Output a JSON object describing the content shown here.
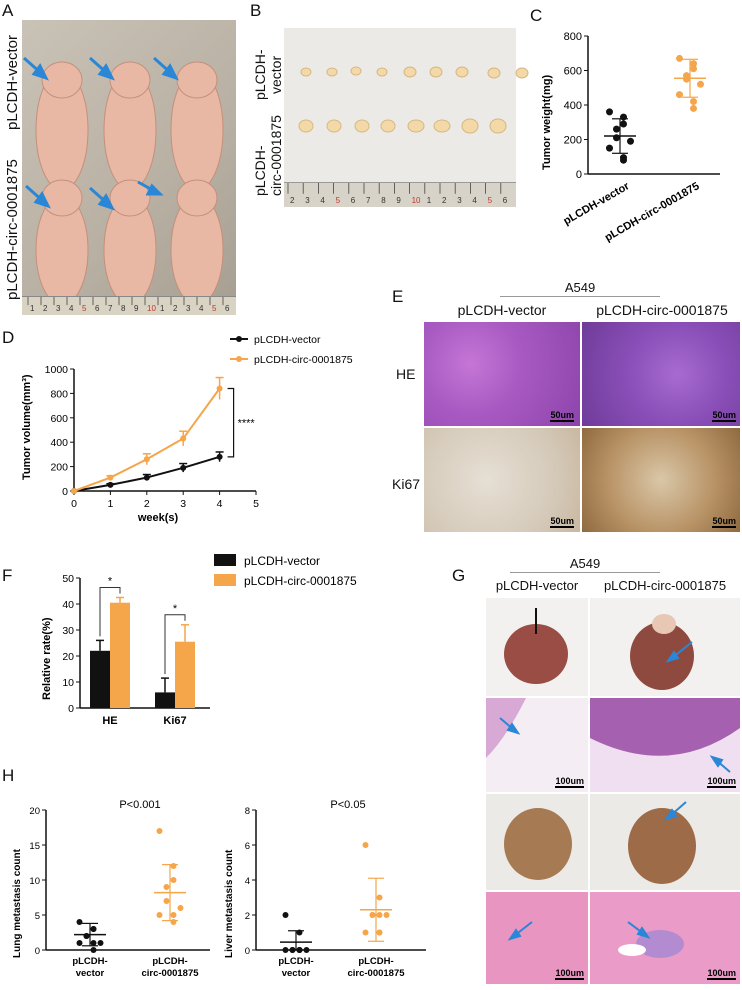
{
  "panels": {
    "A": {
      "letter": "A",
      "group1": "pLCDH-vector",
      "group2": "pLCDH-circ-0001875",
      "ruler": [
        "1",
        "2",
        "3",
        "4",
        "5",
        "6",
        "7",
        "8",
        "9",
        "10",
        "1",
        "2",
        "3",
        "4",
        "5",
        "6"
      ]
    },
    "B": {
      "letter": "B",
      "group1_l1": "pLCDH-",
      "group1_l2": "vector",
      "group2_l1": "pLCDH-",
      "group2_l2": "circ-0001875",
      "ruler": [
        "2",
        "3",
        "4",
        "5",
        "6",
        "7",
        "8",
        "9",
        "10",
        "1",
        "2",
        "3",
        "4",
        "5",
        "6"
      ]
    },
    "C": {
      "letter": "C"
    },
    "D": {
      "letter": "D"
    },
    "E": {
      "letter": "E",
      "cell_line": "A549",
      "col1": "pLCDH-vector",
      "col2": "pLCDH-circ-0001875",
      "row1": "HE",
      "row2": "Ki67",
      "scale": "50um"
    },
    "F": {
      "letter": "F"
    },
    "G": {
      "letter": "G",
      "cell_line": "A549",
      "col1": "pLCDH-vector",
      "col2": "pLCDH-circ-0001875",
      "scale": "100um"
    },
    "H": {
      "letter": "H"
    }
  },
  "chart_data": [
    {
      "id": "C",
      "type": "scatter",
      "ylabel": "Tumor weight(mg)",
      "ylim": [
        0,
        800
      ],
      "yticks": [
        "0",
        "200",
        "400",
        "600",
        "800"
      ],
      "categories": [
        "pLCDH-vector",
        "pLCDH-circ-0001875"
      ],
      "series": [
        {
          "name": "pLCDH-vector",
          "color": "#111111",
          "points": [
            360,
            330,
            290,
            260,
            210,
            190,
            150,
            95,
            80
          ],
          "mean": 220,
          "sd": [
            120,
            320
          ]
        },
        {
          "name": "pLCDH-circ-0001875",
          "color": "#f5a54a",
          "points": [
            670,
            640,
            610,
            570,
            550,
            520,
            460,
            420,
            380
          ],
          "mean": 555,
          "sd": [
            445,
            665
          ]
        }
      ]
    },
    {
      "id": "D",
      "type": "line",
      "xlabel": "week(s)",
      "ylabel": "Tumor volume(mm³)",
      "xlim": [
        0,
        5
      ],
      "ylim": [
        0,
        1000
      ],
      "xticks": [
        "0",
        "1",
        "2",
        "3",
        "4",
        "5"
      ],
      "yticks": [
        "0",
        "200",
        "400",
        "600",
        "800",
        "1000"
      ],
      "significance": "****",
      "series": [
        {
          "name": "pLCDH-vector",
          "color": "#111111",
          "x": [
            0,
            1,
            2,
            3,
            4
          ],
          "y": [
            0,
            50,
            110,
            190,
            280
          ],
          "err": [
            0,
            10,
            25,
            35,
            40
          ]
        },
        {
          "name": "pLCDH-circ-0001875",
          "color": "#f5a54a",
          "x": [
            0,
            1,
            2,
            3,
            4
          ],
          "y": [
            0,
            110,
            260,
            430,
            840
          ],
          "err": [
            0,
            15,
            45,
            60,
            90
          ]
        }
      ]
    },
    {
      "id": "F",
      "type": "bar",
      "ylabel": "Relative rate(%)",
      "ylim": [
        0,
        50
      ],
      "yticks": [
        "0",
        "10",
        "20",
        "30",
        "40",
        "50"
      ],
      "categories": [
        "HE",
        "Ki67"
      ],
      "significance": [
        "*",
        "*"
      ],
      "series": [
        {
          "name": "pLCDH-vector",
          "color": "#111111",
          "values": [
            22,
            6
          ],
          "err": [
            4,
            5.5
          ]
        },
        {
          "name": "pLCDH-circ-0001875",
          "color": "#f5a54a",
          "values": [
            40.5,
            25.5
          ],
          "err": [
            2,
            6.5
          ]
        }
      ]
    },
    {
      "id": "H1",
      "type": "scatter",
      "ylabel": "Lung metastasis count",
      "ylim": [
        0,
        20
      ],
      "yticks": [
        "0",
        "5",
        "10",
        "15",
        "20"
      ],
      "annotation": "P<0.001",
      "categories": [
        [
          "pLCDH-",
          "vector"
        ],
        [
          "pLCDH-",
          "circ-0001875"
        ]
      ],
      "series": [
        {
          "name": "pLCDH-vector",
          "color": "#111111",
          "points": [
            4,
            3,
            3,
            2,
            2,
            1,
            1,
            1,
            0
          ],
          "mean": 2.2,
          "sd": [
            0.6,
            3.8
          ]
        },
        {
          "name": "pLCDH-circ-0001875",
          "color": "#f5a54a",
          "points": [
            17,
            12,
            10,
            9,
            7,
            6,
            5,
            5,
            4
          ],
          "mean": 8.2,
          "sd": [
            4.2,
            12.2
          ]
        }
      ]
    },
    {
      "id": "H2",
      "type": "scatter",
      "ylabel": "Liver metastasis count",
      "ylim": [
        0,
        8
      ],
      "yticks": [
        "0",
        "2",
        "4",
        "6",
        "8"
      ],
      "annotation": "P<0.05",
      "categories": [
        [
          "pLCDH-",
          "vector"
        ],
        [
          "pLCDH-",
          "circ-0001875"
        ]
      ],
      "series": [
        {
          "name": "pLCDH-vector",
          "color": "#111111",
          "points": [
            2,
            1,
            0,
            0,
            0,
            0,
            0,
            0,
            0
          ],
          "mean": 0.45,
          "sd": [
            0,
            1.1
          ]
        },
        {
          "name": "pLCDH-circ-0001875",
          "color": "#f5a54a",
          "points": [
            6,
            3,
            2,
            2,
            2,
            2,
            1,
            1,
            1
          ],
          "mean": 2.3,
          "sd": [
            0.5,
            4.1
          ]
        }
      ]
    }
  ]
}
